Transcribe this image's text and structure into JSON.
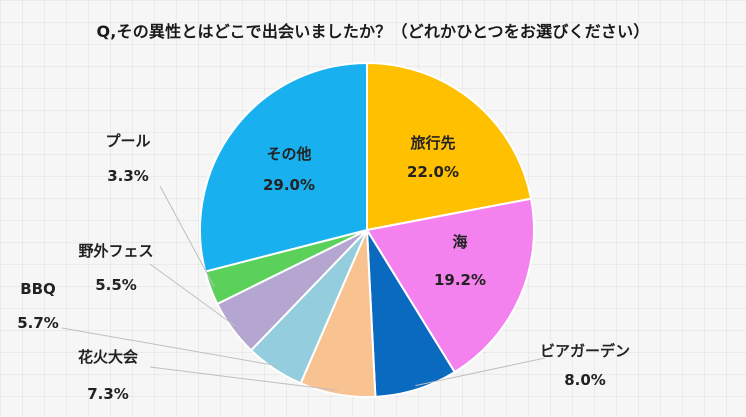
{
  "chart_data": {
    "type": "pie",
    "title": "Q,その異性とはどこで出会いましたか？（どれかひとつをお選びください）",
    "unit": "%",
    "series": [
      {
        "categories": [
          "旅行先",
          "海",
          "ビアガーデン",
          "花火大会",
          "BBQ",
          "野外フェス",
          "プール",
          "その他"
        ],
        "values": [
          22.0,
          19.2,
          8.0,
          7.3,
          5.7,
          5.5,
          3.3,
          29.0
        ],
        "value_labels": [
          "22.0%",
          "19.2%",
          "8.0%",
          "7.3%",
          "5.7%",
          "5.5%",
          "3.3%",
          "29.0%"
        ],
        "colors": [
          "#ffc000",
          "#f382ee",
          "#0a6ac0",
          "#f8c291",
          "#94cddd",
          "#b4a6d0",
          "#5bd05b",
          "#18b0ee"
        ]
      }
    ],
    "start_angle": "12 o'clock",
    "direction": "clockwise",
    "legend": "none"
  }
}
